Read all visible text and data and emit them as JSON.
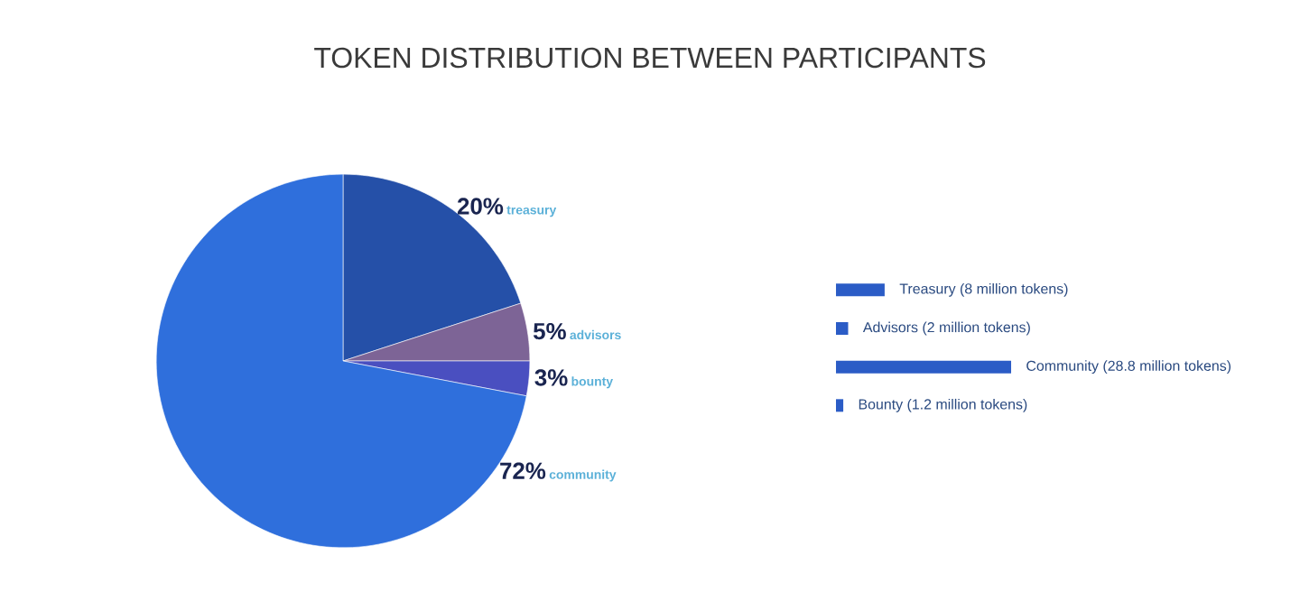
{
  "chart_data": [
    {
      "type": "pie",
      "title": "TOKEN DISTRIBUTION BETWEEN PARTICIPANTS",
      "categories": [
        "treasury",
        "advisors",
        "bounty",
        "community"
      ],
      "values": [
        20,
        5,
        3,
        72
      ],
      "value_labels": [
        "20%",
        "5%",
        "3%",
        "72%"
      ],
      "colors": [
        "#2550a8",
        "#7d6496",
        "#4a4fc0",
        "#2f6fdc"
      ]
    },
    {
      "type": "bar",
      "orientation": "horizontal",
      "categories": [
        null,
        null,
        null,
        null
      ],
      "values": [
        8,
        2,
        28.8,
        1.2
      ],
      "value_labels": [
        "Treasury (8 million tokens)",
        "Advisors (2 million tokens)",
        "Community (28.8 million tokens)",
        "Bounty (1.2 million tokens)"
      ],
      "color": "#2b5cc6"
    }
  ]
}
